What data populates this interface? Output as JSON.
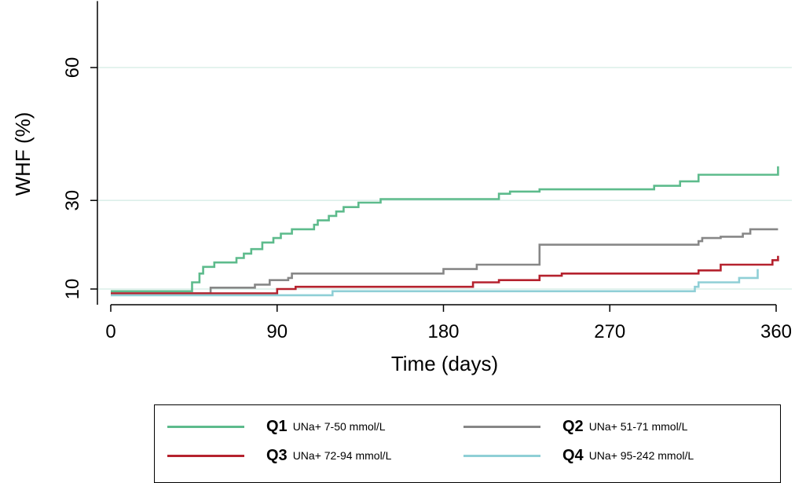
{
  "chart_data": {
    "type": "line",
    "step": true,
    "xlabel": "Time (days)",
    "ylabel": "WHF (%)",
    "xlim": [
      0,
      360
    ],
    "ylim": [
      8,
      75
    ],
    "xticks": [
      0,
      90,
      180,
      270,
      360
    ],
    "yticks": [
      10,
      30,
      60
    ],
    "grid": "horizontal",
    "legend_position": "bottom",
    "series": [
      {
        "key": "Q1",
        "name": "UNa+ 7-50 mmol/L",
        "color": "#5dbb8c",
        "x": [
          0,
          32,
          44,
          48,
          50,
          56,
          68,
          72,
          76,
          82,
          88,
          92,
          98,
          110,
          112,
          118,
          122,
          126,
          134,
          146,
          210,
          216,
          232,
          294,
          308,
          318,
          360,
          361
        ],
        "y": [
          9.5,
          9.5,
          11.5,
          13.5,
          15.0,
          16.0,
          17.0,
          18.0,
          19.0,
          20.5,
          21.5,
          22.5,
          23.5,
          24.5,
          25.5,
          26.5,
          27.5,
          28.5,
          29.5,
          30.3,
          31.5,
          32.0,
          32.5,
          33.3,
          34.3,
          35.8,
          35.8,
          37.7
        ]
      },
      {
        "key": "Q2",
        "name": "UNa+ 51-71 mmol/L",
        "color": "#878787",
        "x": [
          0,
          42,
          54,
          78,
          86,
          96,
          98,
          180,
          198,
          232,
          318,
          320,
          330,
          342,
          346,
          361
        ],
        "y": [
          9.0,
          9.0,
          10.3,
          11.0,
          12.0,
          12.5,
          13.5,
          14.5,
          15.5,
          20.0,
          20.8,
          21.5,
          21.8,
          22.5,
          23.5,
          23.5
        ]
      },
      {
        "key": "Q3",
        "name": "UNa+ 72-94 mmol/L",
        "color": "#b5222e",
        "x": [
          0,
          44,
          90,
          100,
          196,
          210,
          232,
          244,
          318,
          330,
          358,
          361
        ],
        "y": [
          9.0,
          9.0,
          10.0,
          10.5,
          11.5,
          12.0,
          13.0,
          13.5,
          14.2,
          15.5,
          16.5,
          17.5
        ]
      },
      {
        "key": "Q4",
        "name": "UNa+ 95-242 mmol/L",
        "color": "#8fcfd6",
        "x": [
          0,
          68,
          120,
          316,
          318,
          340,
          350
        ],
        "y": [
          8.6,
          8.6,
          9.5,
          10.5,
          11.5,
          12.5,
          14.5
        ]
      }
    ]
  }
}
